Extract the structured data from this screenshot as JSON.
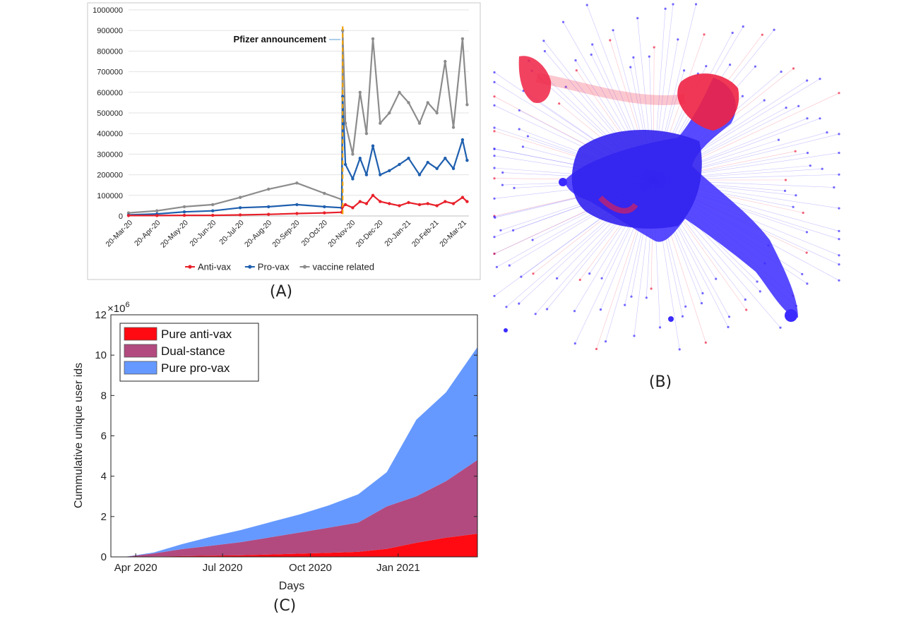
{
  "panels": {
    "a": {
      "label": "(A)",
      "chart_data": {
        "type": "line",
        "annotation": "Pfizer announcement",
        "y_ticks": [
          "0",
          "100000",
          "200000",
          "300000",
          "400000",
          "500000",
          "600000",
          "700000",
          "800000",
          "900000",
          "1000000"
        ],
        "x_ticks": [
          "20-Mar-20",
          "20-Apr-20",
          "20-May-20",
          "20-Jun-20",
          "20-Jul-20",
          "20-Aug-20",
          "20-Sep-20",
          "20-Oct-20",
          "20-Nov-20",
          "20-Dec-20",
          "20-Jan-21",
          "20-Feb-21",
          "20-Mar-21"
        ],
        "ylim": [
          0,
          1000000
        ],
        "annotation_date": "2020-11-09",
        "series": [
          {
            "name": "Anti-vax",
            "color": "#e8202a",
            "x": [
              "2020-03-20",
              "2020-04-20",
              "2020-05-20",
              "2020-06-20",
              "2020-07-20",
              "2020-08-20",
              "2020-09-20",
              "2020-10-20",
              "2020-11-08",
              "2020-11-09",
              "2020-11-12",
              "2020-11-20",
              "2020-11-28",
              "2020-12-05",
              "2020-12-12",
              "2020-12-20",
              "2020-12-30",
              "2021-01-10",
              "2021-01-20",
              "2021-02-01",
              "2021-02-10",
              "2021-02-20",
              "2021-03-01",
              "2021-03-10",
              "2021-03-20",
              "2021-03-25"
            ],
            "values": [
              2000,
              2000,
              3000,
              3000,
              5000,
              8000,
              12000,
              15000,
              18000,
              45000,
              55000,
              40000,
              70000,
              60000,
              100000,
              70000,
              60000,
              50000,
              65000,
              55000,
              60000,
              50000,
              70000,
              60000,
              90000,
              70000
            ]
          },
          {
            "name": "Pro-vax",
            "color": "#1f5fae",
            "x": [
              "2020-03-20",
              "2020-04-20",
              "2020-05-20",
              "2020-06-20",
              "2020-07-20",
              "2020-08-20",
              "2020-09-20",
              "2020-10-20",
              "2020-11-08",
              "2020-11-09",
              "2020-11-12",
              "2020-11-20",
              "2020-11-28",
              "2020-12-05",
              "2020-12-12",
              "2020-12-20",
              "2020-12-30",
              "2021-01-10",
              "2021-01-20",
              "2021-02-01",
              "2021-02-10",
              "2021-02-20",
              "2021-03-01",
              "2021-03-10",
              "2021-03-20",
              "2021-03-25"
            ],
            "values": [
              5000,
              10000,
              20000,
              25000,
              40000,
              45000,
              55000,
              45000,
              40000,
              580000,
              250000,
              180000,
              280000,
              200000,
              340000,
              200000,
              220000,
              250000,
              280000,
              200000,
              260000,
              230000,
              280000,
              230000,
              370000,
              270000
            ]
          },
          {
            "name": "vaccine related",
            "color": "#8c8c8c",
            "x": [
              "2020-03-20",
              "2020-04-20",
              "2020-05-20",
              "2020-06-20",
              "2020-07-20",
              "2020-08-20",
              "2020-09-20",
              "2020-10-20",
              "2020-11-08",
              "2020-11-09",
              "2020-11-12",
              "2020-11-20",
              "2020-11-28",
              "2020-12-05",
              "2020-12-12",
              "2020-12-20",
              "2020-12-30",
              "2021-01-10",
              "2021-01-20",
              "2021-02-01",
              "2021-02-10",
              "2021-02-20",
              "2021-03-01",
              "2021-03-10",
              "2021-03-20",
              "2021-03-25"
            ],
            "values": [
              15000,
              25000,
              45000,
              55000,
              90000,
              130000,
              160000,
              110000,
              80000,
              900000,
              450000,
              300000,
              600000,
              400000,
              860000,
              450000,
              500000,
              600000,
              550000,
              450000,
              550000,
              500000,
              750000,
              430000,
              860000,
              540000
            ]
          }
        ],
        "legend_position": "bottom"
      }
    },
    "b": {
      "label": "(B)",
      "colors": {
        "pro": "#3b2bff",
        "anti": "#ee2244"
      }
    },
    "c": {
      "label": "(C)",
      "chart_data": {
        "type": "area",
        "xlabel": "Days",
        "ylabel": "Cummulative unique user ids",
        "multiplier": "×10",
        "multiplier_exp": "6",
        "y_ticks": [
          "0",
          "2",
          "4",
          "6",
          "8",
          "10",
          "12"
        ],
        "x_ticks": [
          "Apr 2020",
          "Jul 2020",
          "Oct 2020",
          "Jan 2021"
        ],
        "ylim": [
          0,
          12
        ],
        "legend_position": "top-left",
        "x": [
          "2020-03-20",
          "2020-04-20",
          "2020-05-20",
          "2020-06-20",
          "2020-07-20",
          "2020-08-20",
          "2020-09-20",
          "2020-10-20",
          "2020-11-20",
          "2020-12-20",
          "2021-01-20",
          "2021-02-20",
          "2021-03-25"
        ],
        "series": [
          {
            "name": "Pure anti-vax",
            "color": "#ff0a12",
            "values": [
              0.0,
              0.02,
              0.04,
              0.06,
              0.08,
              0.12,
              0.16,
              0.2,
              0.25,
              0.4,
              0.7,
              0.95,
              1.15
            ]
          },
          {
            "name": "Dual-stance",
            "color": "#b24a7f",
            "values": [
              0.0,
              0.15,
              0.35,
              0.5,
              0.65,
              0.85,
              1.05,
              1.25,
              1.45,
              2.1,
              2.3,
              2.8,
              3.65
            ]
          },
          {
            "name": "Pure pro-vax",
            "color": "#6699ff",
            "values": [
              0.0,
              0.05,
              0.25,
              0.45,
              0.6,
              0.75,
              0.9,
              1.1,
              1.4,
              1.7,
              3.8,
              4.4,
              5.6
            ]
          }
        ]
      }
    }
  }
}
